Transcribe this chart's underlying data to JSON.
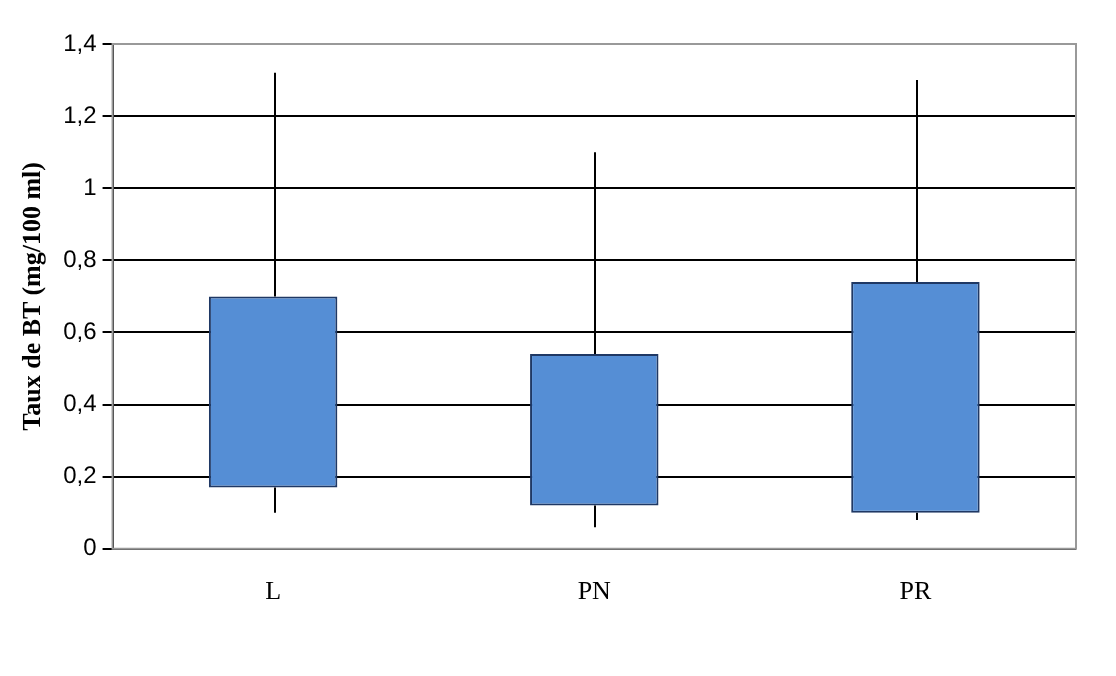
{
  "chart_data": {
    "type": "bar",
    "ylabel": "Taux de BT (mg/100 ml)",
    "categories": [
      "L",
      "PN",
      "PR"
    ],
    "base": [
      0.17,
      0.12,
      0.1
    ],
    "values": [
      0.53,
      0.42,
      0.64
    ],
    "errors": [
      [
        0.1,
        1.32
      ],
      [
        0.06,
        1.1
      ],
      [
        0.08,
        1.3
      ]
    ],
    "color": "#558ed5",
    "ylim": [
      0,
      1.4
    ],
    "yticks": [
      0,
      {
        "value": 0.2,
        "label": "0,2"
      },
      {
        "value": 0.4,
        "label": "0,4"
      },
      {
        "value": 0.6,
        "label": "0,6"
      },
      {
        "value": 0.8,
        "label": "0,8"
      },
      1,
      {
        "value": 1.2,
        "label": "1,2"
      },
      {
        "value": 1.4,
        "label": "1,4"
      }
    ],
    "grid": "y"
  }
}
